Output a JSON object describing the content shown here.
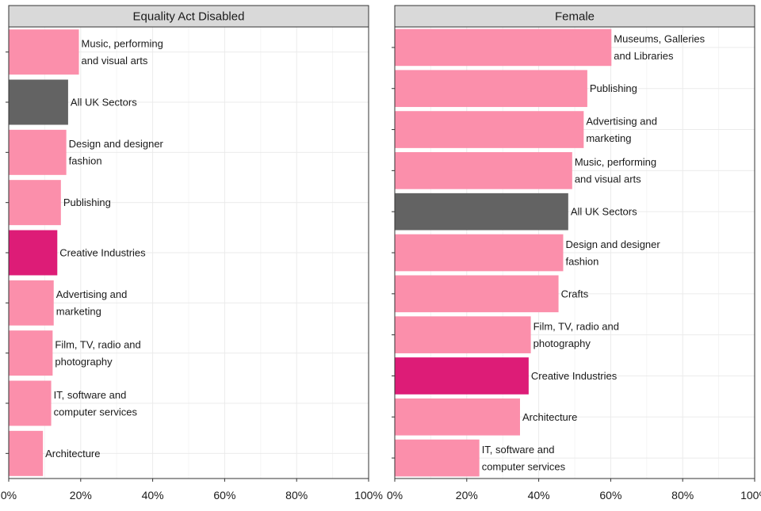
{
  "chart_data": [
    {
      "type": "bar",
      "orientation": "horizontal",
      "title": "Equality Act Disabled",
      "xlim": [
        0,
        100
      ],
      "x_ticks": [
        "0%",
        "20%",
        "40%",
        "60%",
        "80%",
        "100%"
      ],
      "grid": true,
      "colors": {
        "sector": "#fb8fab",
        "all_uk": "#636363",
        "creative_industries": "#dd1c77"
      },
      "bars": [
        {
          "label": "Music, performing and visual arts",
          "lines": [
            "Music, performing",
            "and visual arts"
          ],
          "value": 19.5,
          "group": "sector"
        },
        {
          "label": "All UK Sectors",
          "lines": [
            "All UK Sectors"
          ],
          "value": 16.5,
          "group": "all_uk"
        },
        {
          "label": "Design and designer fashion",
          "lines": [
            "Design and designer",
            "fashion"
          ],
          "value": 16.0,
          "group": "sector"
        },
        {
          "label": "Publishing",
          "lines": [
            "Publishing"
          ],
          "value": 14.5,
          "group": "sector"
        },
        {
          "label": "Creative Industries",
          "lines": [
            "Creative Industries"
          ],
          "value": 13.5,
          "group": "creative_industries"
        },
        {
          "label": "Advertising and marketing",
          "lines": [
            "Advertising and",
            "marketing"
          ],
          "value": 12.5,
          "group": "sector"
        },
        {
          "label": "Film, TV, radio and photography",
          "lines": [
            "Film, TV, radio and",
            "photography"
          ],
          "value": 12.2,
          "group": "sector"
        },
        {
          "label": "IT, software and computer services",
          "lines": [
            "IT, software and",
            "computer services"
          ],
          "value": 11.8,
          "group": "sector"
        },
        {
          "label": "Architecture",
          "lines": [
            "Architecture"
          ],
          "value": 9.5,
          "group": "sector"
        }
      ]
    },
    {
      "type": "bar",
      "orientation": "horizontal",
      "title": "Female",
      "xlim": [
        0,
        100
      ],
      "x_ticks": [
        "0%",
        "20%",
        "40%",
        "60%",
        "80%",
        "100%"
      ],
      "grid": true,
      "colors": {
        "sector": "#fb8fab",
        "all_uk": "#636363",
        "creative_industries": "#dd1c77"
      },
      "bars": [
        {
          "label": "Museums, Galleries and Libraries",
          "lines": [
            "Museums, Galleries",
            "and Libraries"
          ],
          "value": 60.2,
          "group": "sector"
        },
        {
          "label": "Publishing",
          "lines": [
            "Publishing"
          ],
          "value": 53.5,
          "group": "sector"
        },
        {
          "label": "Advertising and marketing",
          "lines": [
            "Advertising and",
            "marketing"
          ],
          "value": 52.5,
          "group": "sector"
        },
        {
          "label": "Music, performing and visual arts",
          "lines": [
            "Music, performing",
            "and visual arts"
          ],
          "value": 49.3,
          "group": "sector"
        },
        {
          "label": "All UK Sectors",
          "lines": [
            "All UK Sectors"
          ],
          "value": 48.2,
          "group": "all_uk"
        },
        {
          "label": "Design and designer fashion",
          "lines": [
            "Design and designer",
            "fashion"
          ],
          "value": 46.8,
          "group": "sector"
        },
        {
          "label": "Crafts",
          "lines": [
            "Crafts"
          ],
          "value": 45.5,
          "group": "sector"
        },
        {
          "label": "Film, TV, radio and photography",
          "lines": [
            "Film, TV, radio and",
            "photography"
          ],
          "value": 37.8,
          "group": "sector"
        },
        {
          "label": "Creative Industries",
          "lines": [
            "Creative Industries"
          ],
          "value": 37.2,
          "group": "creative_industries"
        },
        {
          "label": "Architecture",
          "lines": [
            "Architecture"
          ],
          "value": 34.8,
          "group": "sector"
        },
        {
          "label": "IT, software and computer services",
          "lines": [
            "IT, software and",
            "computer services"
          ],
          "value": 23.5,
          "group": "sector"
        }
      ]
    }
  ]
}
